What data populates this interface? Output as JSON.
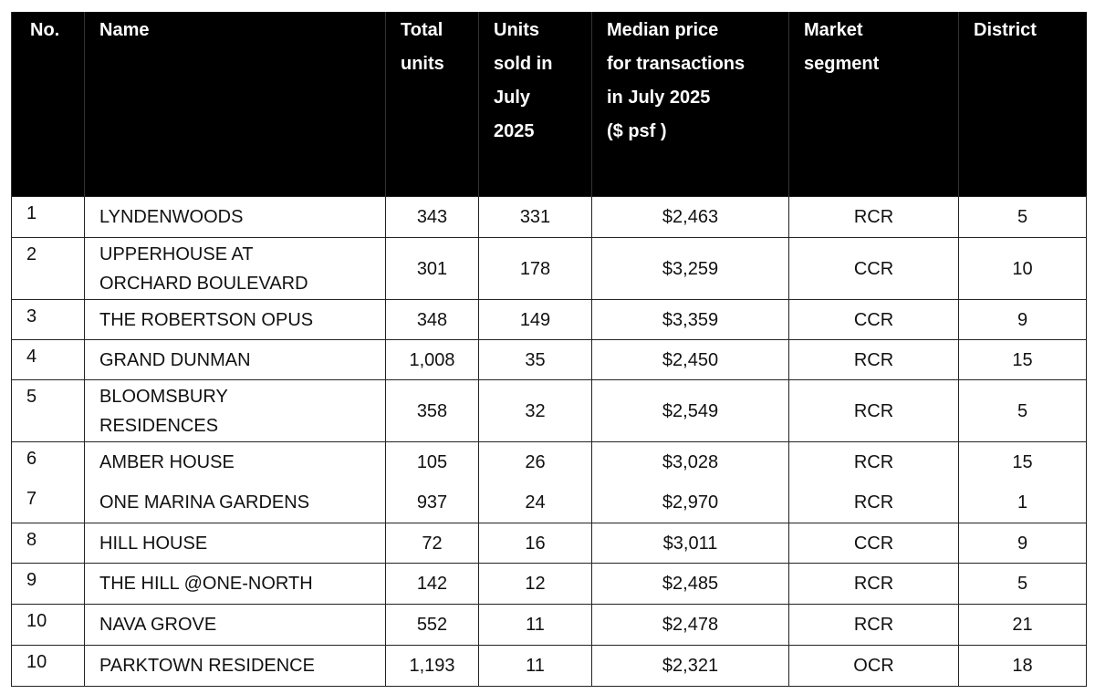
{
  "table": {
    "header": [
      "No.",
      "Name",
      "Total\nunits",
      "Units\nsold in\nJuly\n2025",
      "Median price\nfor transactions\nin July 2025\n($ psf )",
      "Market\nsegment",
      "District"
    ],
    "rows": [
      [
        "1",
        "LYNDENWOODS",
        "343",
        "331",
        "$2,463",
        "RCR",
        "5"
      ],
      [
        "2",
        "UPPERHOUSE AT\nORCHARD BOULEVARD",
        "301",
        "178",
        "$3,259",
        "CCR",
        "10"
      ],
      [
        "3",
        "THE ROBERTSON OPUS",
        "348",
        "149",
        "$3,359",
        "CCR",
        "9"
      ],
      [
        "4",
        "GRAND DUNMAN",
        "1,008",
        "35",
        "$2,450",
        "RCR",
        "15"
      ],
      [
        "5",
        "BLOOMSBURY\nRESIDENCES",
        "358",
        "32",
        "$2,549",
        "RCR",
        "5"
      ],
      [
        "6",
        "AMBER HOUSE",
        "105",
        "26",
        "$3,028",
        "RCR",
        "15"
      ],
      [
        "7",
        "ONE MARINA GARDENS",
        "937",
        "24",
        "$2,970",
        "RCR",
        "1"
      ],
      [
        "8",
        "HILL HOUSE",
        "72",
        "16",
        "$3,011",
        "CCR",
        "9"
      ],
      [
        "9",
        "THE HILL @ONE-NORTH",
        "142",
        "12",
        "$2,485",
        "RCR",
        "5"
      ],
      [
        "10",
        "NAVA GROVE",
        "552",
        "11",
        "$2,478",
        "RCR",
        "21"
      ],
      [
        "10",
        "PARKTOWN RESIDENCE",
        "1,193",
        "11",
        "$2,321",
        "OCR",
        "18"
      ]
    ]
  }
}
